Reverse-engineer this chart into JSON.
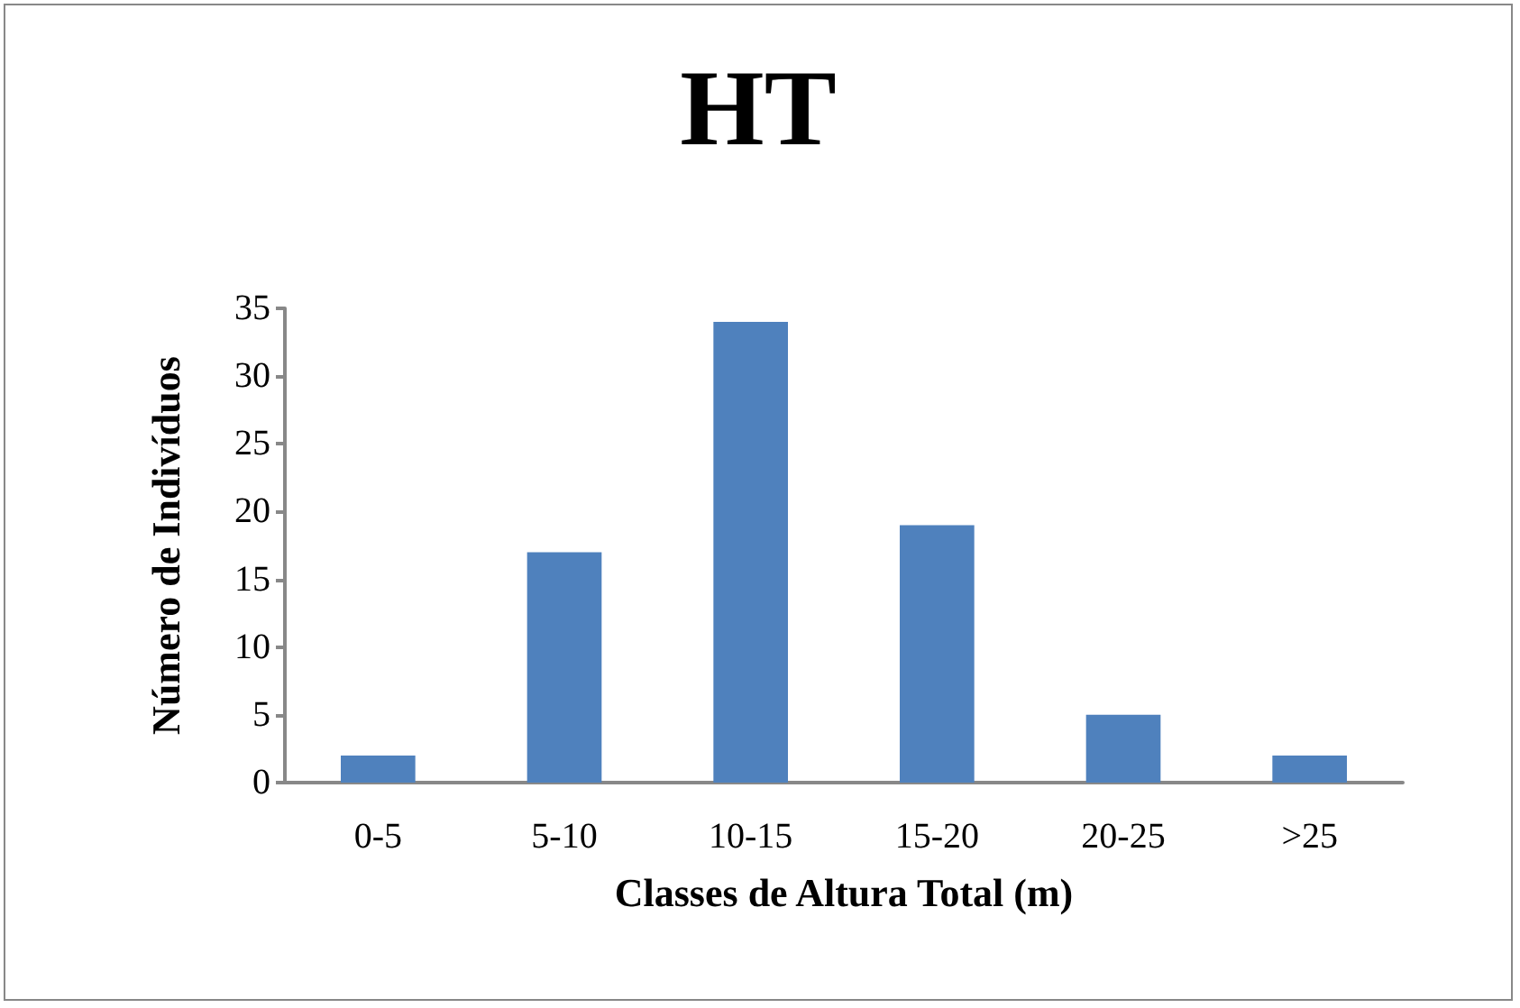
{
  "chart_data": {
    "type": "bar",
    "title": "HT",
    "xlabel": "Classes de Altura Total (m)",
    "ylabel": "Número de Indivíduos",
    "categories": [
      "0-5",
      "5-10",
      "10-15",
      "15-20",
      "20-25",
      ">25"
    ],
    "values": [
      2,
      17,
      34,
      19,
      5,
      2
    ],
    "color": "#4f81bd",
    "ylim": [
      0,
      35
    ],
    "yticks": [
      0,
      5,
      10,
      15,
      20,
      25,
      30,
      35
    ],
    "grid": false
  }
}
